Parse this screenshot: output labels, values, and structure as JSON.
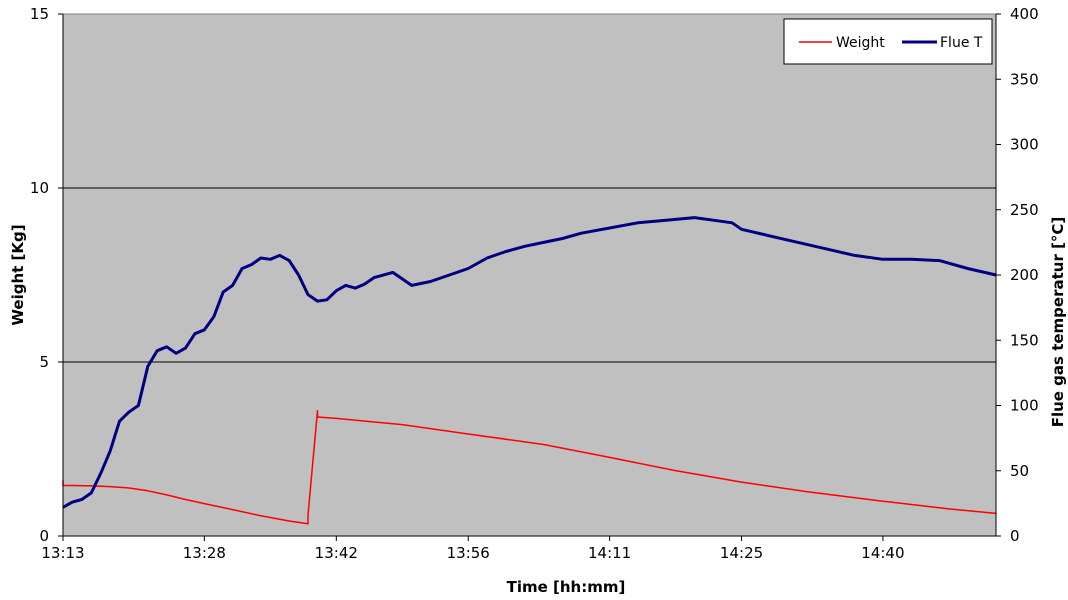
{
  "chart_data": {
    "type": "line",
    "xlabel": "Time [hh:mm]",
    "ylabel_left": "Weight [Kg]",
    "ylabel_right": "Flue gas temperatur [°C]",
    "x_ticks": [
      "13:13",
      "13:28",
      "13:42",
      "13:56",
      "14:11",
      "14:25",
      "14:40"
    ],
    "xlim": [
      "13:13",
      "14:52"
    ],
    "ylim_left": [
      0,
      15
    ],
    "ylim_right": [
      0,
      400
    ],
    "y_ticks_left": [
      0,
      5,
      10,
      15
    ],
    "y_ticks_right": [
      0,
      50,
      100,
      150,
      200,
      250,
      300,
      350,
      400
    ],
    "grid": "horizontal",
    "plot_background": "#c0c0c0",
    "legend_position": "top-right",
    "series": [
      {
        "name": "Weight",
        "axis": "left",
        "color": "#ff0000",
        "x": [
          "13:13",
          "13:13",
          "13:14",
          "13:16",
          "13:18",
          "13:20",
          "13:22",
          "13:24",
          "13:26",
          "13:28",
          "13:31",
          "13:34",
          "13:37",
          "13:39",
          "13:39",
          "13:40",
          "13:40",
          "13:42",
          "13:49",
          "13:56",
          "14:04",
          "14:11",
          "14:18",
          "14:25",
          "14:32",
          "14:40",
          "14:47",
          "14:52"
        ],
        "y": [
          1.6,
          1.45,
          1.45,
          1.44,
          1.42,
          1.38,
          1.3,
          1.18,
          1.05,
          0.93,
          0.76,
          0.58,
          0.43,
          0.35,
          0.6,
          3.6,
          3.42,
          3.38,
          3.2,
          2.93,
          2.63,
          2.26,
          1.88,
          1.55,
          1.27,
          1.0,
          0.78,
          0.65
        ]
      },
      {
        "name": "Flue T",
        "axis": "right",
        "color": "#000080",
        "x": [
          "13:13",
          "13:14",
          "13:15",
          "13:16",
          "13:17",
          "13:18",
          "13:19",
          "13:20",
          "13:21",
          "13:22",
          "13:23",
          "13:24",
          "13:25",
          "13:26",
          "13:27",
          "13:28",
          "13:29",
          "13:30",
          "13:31",
          "13:32",
          "13:33",
          "13:34",
          "13:35",
          "13:36",
          "13:37",
          "13:38",
          "13:39",
          "13:40",
          "13:41",
          "13:42",
          "13:43",
          "13:44",
          "13:45",
          "13:46",
          "13:48",
          "13:50",
          "13:52",
          "13:54",
          "13:56",
          "13:58",
          "14:00",
          "14:02",
          "14:04",
          "14:06",
          "14:08",
          "14:11",
          "14:14",
          "14:17",
          "14:20",
          "14:22",
          "14:24",
          "14:25",
          "14:28",
          "14:31",
          "14:34",
          "14:37",
          "14:40",
          "14:43",
          "14:46",
          "14:49",
          "14:52"
        ],
        "y": [
          22,
          26,
          28,
          33,
          48,
          65,
          88,
          95,
          100,
          130,
          142,
          145,
          140,
          144,
          155,
          158,
          168,
          187,
          192,
          205,
          208,
          213,
          212,
          215,
          211,
          200,
          185,
          180,
          181,
          188,
          192,
          190,
          193,
          198,
          202,
          192,
          195,
          200,
          205,
          213,
          218,
          222,
          225,
          228,
          232,
          236,
          240,
          242,
          244,
          242,
          240,
          235,
          230,
          225,
          220,
          215,
          212,
          212,
          211,
          205,
          200
        ]
      }
    ]
  }
}
